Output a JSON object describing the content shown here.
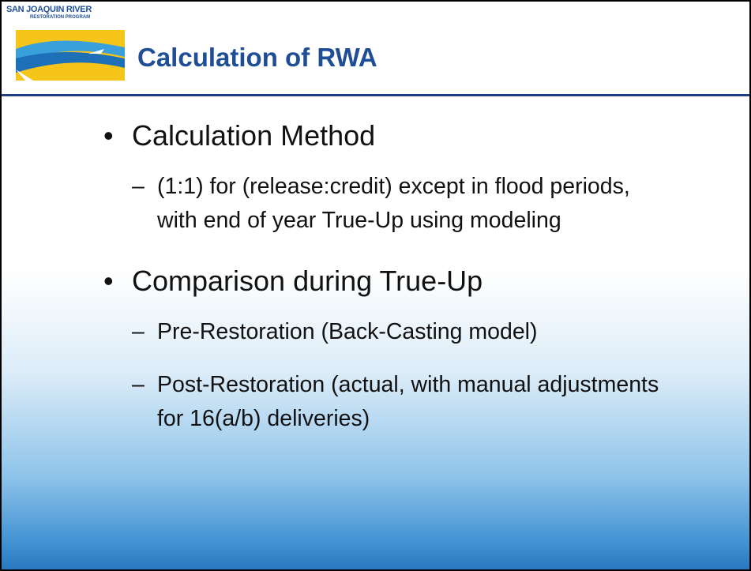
{
  "logo": {
    "name": "SAN JOAQUIN RIVER",
    "program": "RESTORATION PROGRAM"
  },
  "title": "Calculation of RWA",
  "bullets": [
    {
      "text": "Calculation Method",
      "subs": [
        "(1:1) for (release:credit) except in flood periods, with end of year True-Up using modeling"
      ]
    },
    {
      "text": "Comparison during True-Up",
      "subs": [
        "Pre-Restoration (Back-Casting model)",
        "Post-Restoration (actual, with manual adjustments for 16(a/b) deliveries)"
      ]
    }
  ]
}
